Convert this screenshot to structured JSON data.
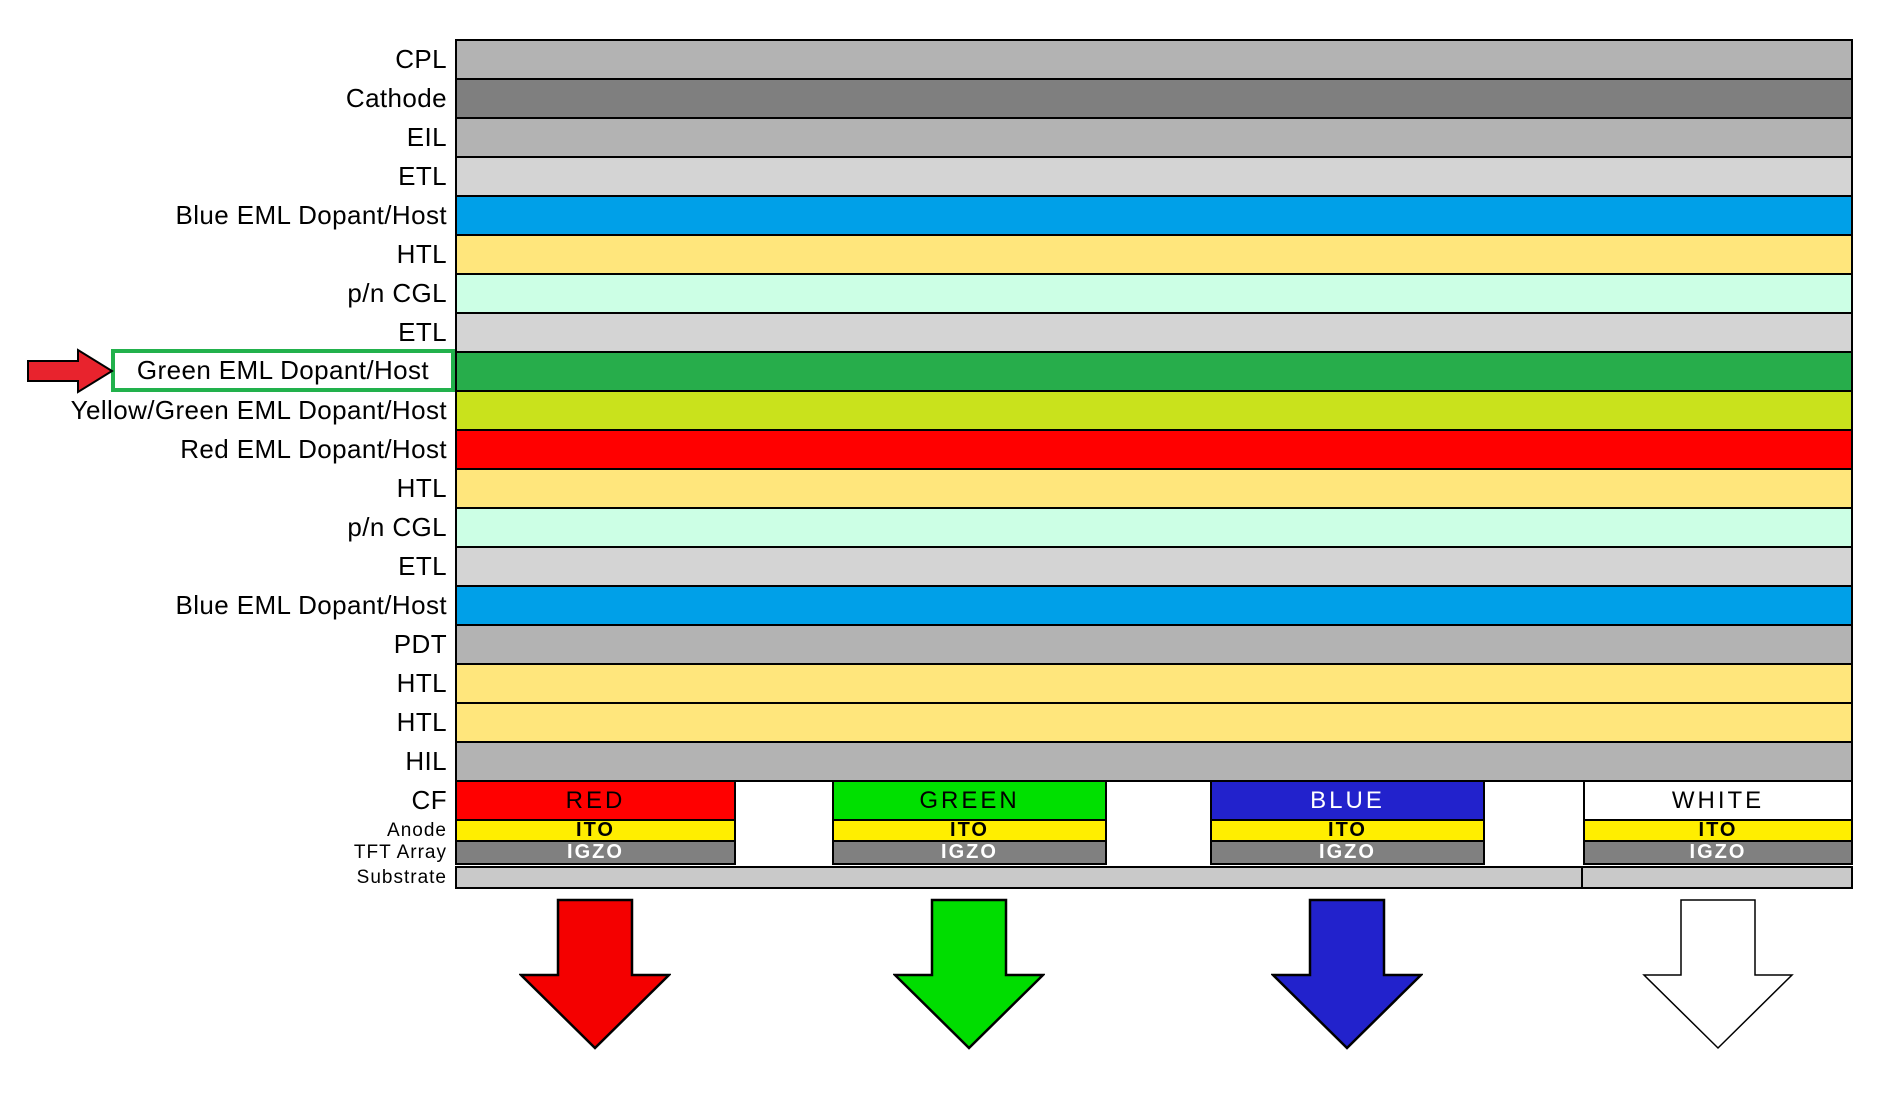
{
  "diagram": {
    "layers": [
      {
        "label": "CPL",
        "color": "#B3B3B3"
      },
      {
        "label": "Cathode",
        "color": "#7F7F7F"
      },
      {
        "label": "EIL",
        "color": "#B3B3B3"
      },
      {
        "label": "ETL",
        "color": "#D4D4D4"
      },
      {
        "label": "Blue EML Dopant/Host",
        "color": "#00A0E8"
      },
      {
        "label": "HTL",
        "color": "#FFE67C"
      },
      {
        "label": "p/n CGL",
        "color": "#CCFFE5"
      },
      {
        "label": "ETL",
        "color": "#D4D4D4"
      },
      {
        "label": "Green EML Dopant/Host",
        "color": "#27AD4B",
        "highlighted": true
      },
      {
        "label": "Yellow/Green EML Dopant/Host",
        "color": "#C9E21C"
      },
      {
        "label": "Red EML Dopant/Host",
        "color": "#FF0000"
      },
      {
        "label": "HTL",
        "color": "#FFE67C"
      },
      {
        "label": "p/n CGL",
        "color": "#CCFFE5"
      },
      {
        "label": "ETL",
        "color": "#D4D4D4"
      },
      {
        "label": "Blue EML Dopant/Host",
        "color": "#00A0E8"
      },
      {
        "label": "PDT",
        "color": "#B3B3B3"
      },
      {
        "label": "HTL",
        "color": "#FFE67C"
      },
      {
        "label": "HTL",
        "color": "#FFE67C"
      },
      {
        "label": "HIL",
        "color": "#B3B3B3"
      }
    ],
    "highlight": {
      "box_color": "#22B14C",
      "arrow_color": "#E8232D"
    },
    "pixel_rows": {
      "cf_label": "CF",
      "anode_label": "Anode",
      "tft_label": "TFT Array",
      "substrate_label": "Substrate"
    },
    "pixels": [
      {
        "cf": "RED",
        "cf_color": "#FF0000",
        "cf_text_color": "#000000",
        "anode": "ITO",
        "tft": "IGZO",
        "arrow_color": "#F40000"
      },
      {
        "cf": "GREEN",
        "cf_color": "#00E000",
        "cf_text_color": "#000000",
        "anode": "ITO",
        "tft": "IGZO",
        "arrow_color": "#00DD00"
      },
      {
        "cf": "BLUE",
        "cf_color": "#2222CC",
        "cf_text_color": "#FFFFFF",
        "anode": "ITO",
        "tft": "IGZO",
        "arrow_color": "#2222CC"
      },
      {
        "cf": "WHITE",
        "cf_color": "#FFFFFF",
        "cf_text_color": "#000000",
        "anode": "ITO",
        "tft": "IGZO",
        "arrow_color": "#FFFFFF"
      }
    ],
    "materials": {
      "ito_color": "#FFEE00",
      "igzo_color": "#808080",
      "substrate_color": "#C9C9C9"
    }
  }
}
